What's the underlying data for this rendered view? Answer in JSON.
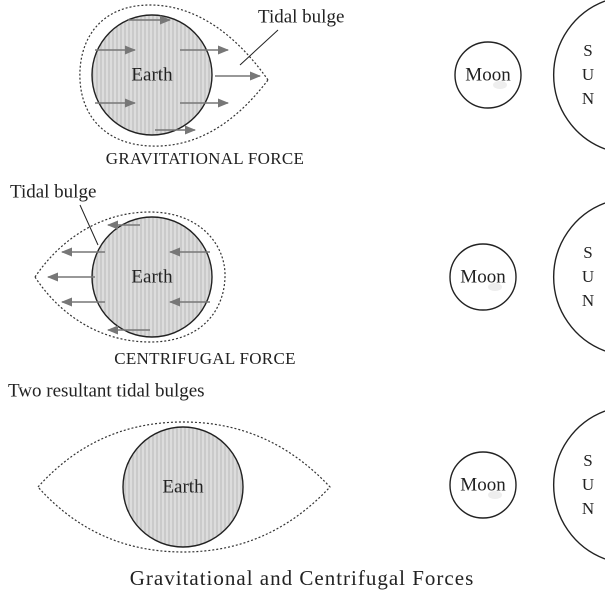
{
  "panels": [
    {
      "earth": "Earth",
      "moon": "Moon",
      "sun": [
        "S",
        "U",
        "N"
      ],
      "bulge_label": "Tidal bulge",
      "caption": "GRAVITATIONAL FORCE"
    },
    {
      "earth": "Earth",
      "moon": "Moon",
      "sun": [
        "S",
        "U",
        "N"
      ],
      "bulge_label": "Tidal bulge",
      "caption": "CENTRIFUGAL FORCE"
    },
    {
      "heading": "Two resultant tidal bulges",
      "earth": "Earth",
      "moon": "Moon",
      "sun": [
        "S",
        "U",
        "N"
      ]
    }
  ],
  "title": "Gravitational and Centrifugal Forces"
}
